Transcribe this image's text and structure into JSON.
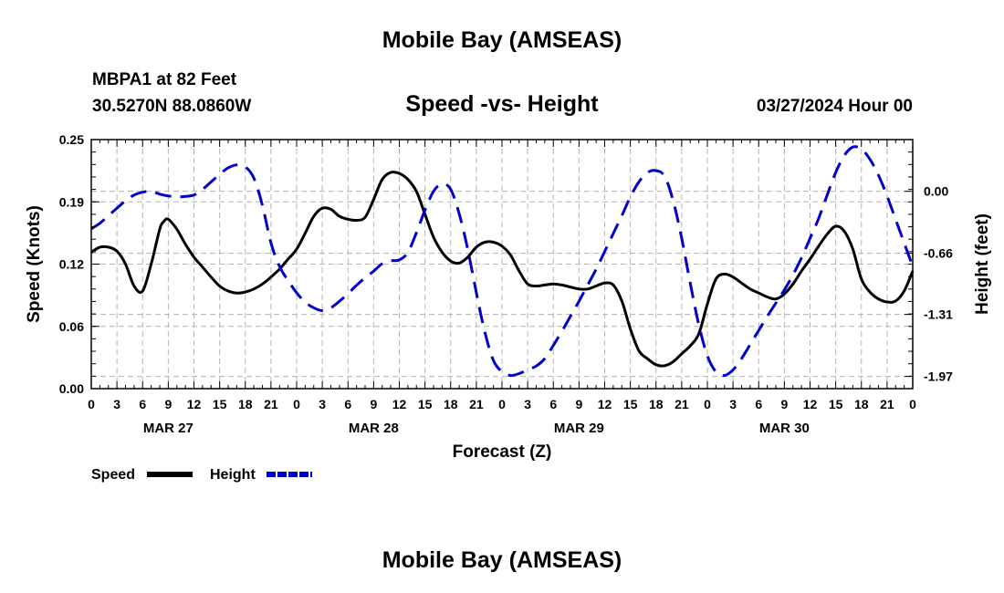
{
  "header": {
    "title": "Mobile Bay (AMSEAS)",
    "station": "MBPA1 at 82 Feet",
    "coords": "30.5270N  88.0860W",
    "chart_title": "Speed -vs- Height",
    "forecast_time": "03/27/2024 Hour 00"
  },
  "footer": {
    "title": "Mobile Bay (AMSEAS)"
  },
  "colors": {
    "speed": "#000000",
    "height": "#0000cc",
    "grid": "#b4b4b4"
  },
  "chart_data": {
    "type": "line",
    "title": "Speed -vs- Height",
    "xlabel": "Forecast (Z)",
    "ylabel_left": "Speed (Knots)",
    "ylabel_right": "Height (feet)",
    "x_unit": "hours",
    "x_range": [
      0,
      96
    ],
    "x_tick_labels": [
      "0",
      "3",
      "6",
      "9",
      "12",
      "15",
      "18",
      "21",
      "0",
      "3",
      "6",
      "9",
      "12",
      "15",
      "18",
      "21",
      "0",
      "3",
      "6",
      "9",
      "12",
      "15",
      "18",
      "21",
      "0",
      "3",
      "6",
      "9",
      "12",
      "15",
      "18",
      "21",
      "0"
    ],
    "day_labels": [
      {
        "label": "MAR 27",
        "hour": 9
      },
      {
        "label": "MAR 28",
        "hour": 33
      },
      {
        "label": "MAR 29",
        "hour": 57
      },
      {
        "label": "MAR 30",
        "hour": 81
      }
    ],
    "y_left": {
      "range": [
        0,
        0.25
      ],
      "ticks": [
        "0.00",
        "0.06",
        "0.12",
        "0.19",
        "0.25"
      ],
      "tick_values": [
        0,
        0.0625,
        0.125,
        0.1875,
        0.25
      ]
    },
    "y_right": {
      "range": [
        -2.1,
        0.55
      ],
      "ticks": [
        "-1.97",
        "-1.31",
        "-0.66",
        "0.00"
      ],
      "tick_values": [
        -1.97,
        -1.31,
        -0.66,
        0.0
      ]
    },
    "grid": true,
    "legend": {
      "placement": "bottom-left",
      "entries": [
        "Speed",
        "Height"
      ]
    },
    "series": [
      {
        "name": "Speed",
        "axis": "left",
        "style": "solid",
        "points": [
          [
            0,
            0.137
          ],
          [
            1,
            0.142
          ],
          [
            2,
            0.142
          ],
          [
            3,
            0.138
          ],
          [
            4,
            0.125
          ],
          [
            5,
            0.103
          ],
          [
            6,
            0.098
          ],
          [
            7,
            0.125
          ],
          [
            8,
            0.16
          ],
          [
            8.5,
            0.168
          ],
          [
            9,
            0.17
          ],
          [
            10,
            0.16
          ],
          [
            11,
            0.145
          ],
          [
            12,
            0.132
          ],
          [
            13,
            0.122
          ],
          [
            14,
            0.112
          ],
          [
            15,
            0.103
          ],
          [
            16,
            0.098
          ],
          [
            17,
            0.096
          ],
          [
            18,
            0.097
          ],
          [
            19,
            0.1
          ],
          [
            20,
            0.105
          ],
          [
            21,
            0.112
          ],
          [
            22,
            0.12
          ],
          [
            23,
            0.13
          ],
          [
            24,
            0.14
          ],
          [
            25,
            0.156
          ],
          [
            26,
            0.173
          ],
          [
            27,
            0.181
          ],
          [
            28,
            0.18
          ],
          [
            29,
            0.173
          ],
          [
            30,
            0.17
          ],
          [
            31,
            0.169
          ],
          [
            32,
            0.172
          ],
          [
            33,
            0.19
          ],
          [
            34,
            0.21
          ],
          [
            35,
            0.217
          ],
          [
            36,
            0.216
          ],
          [
            37,
            0.21
          ],
          [
            38,
            0.198
          ],
          [
            39,
            0.175
          ],
          [
            40,
            0.152
          ],
          [
            41,
            0.137
          ],
          [
            42,
            0.128
          ],
          [
            43,
            0.126
          ],
          [
            44,
            0.132
          ],
          [
            45,
            0.142
          ],
          [
            46,
            0.147
          ],
          [
            47,
            0.147
          ],
          [
            48,
            0.143
          ],
          [
            49,
            0.134
          ],
          [
            50,
            0.118
          ],
          [
            51,
            0.105
          ],
          [
            52,
            0.103
          ],
          [
            53,
            0.104
          ],
          [
            54,
            0.105
          ],
          [
            55,
            0.104
          ],
          [
            56,
            0.102
          ],
          [
            57,
            0.1
          ],
          [
            58,
            0.1
          ],
          [
            59,
            0.103
          ],
          [
            60,
            0.106
          ],
          [
            61,
            0.104
          ],
          [
            62,
            0.088
          ],
          [
            63,
            0.06
          ],
          [
            64,
            0.038
          ],
          [
            65,
            0.03
          ],
          [
            66,
            0.024
          ],
          [
            67,
            0.023
          ],
          [
            68,
            0.027
          ],
          [
            69,
            0.035
          ],
          [
            70,
            0.043
          ],
          [
            71,
            0.055
          ],
          [
            72,
            0.085
          ],
          [
            73,
            0.11
          ],
          [
            74,
            0.115
          ],
          [
            75,
            0.112
          ],
          [
            76,
            0.106
          ],
          [
            77,
            0.1
          ],
          [
            78,
            0.096
          ],
          [
            79,
            0.092
          ],
          [
            80,
            0.09
          ],
          [
            81,
            0.095
          ],
          [
            82,
            0.105
          ],
          [
            83,
            0.118
          ],
          [
            84,
            0.13
          ],
          [
            85,
            0.143
          ],
          [
            86,
            0.155
          ],
          [
            87,
            0.163
          ],
          [
            88,
            0.158
          ],
          [
            89,
            0.14
          ],
          [
            90,
            0.11
          ],
          [
            91,
            0.097
          ],
          [
            92,
            0.09
          ],
          [
            93,
            0.087
          ],
          [
            94,
            0.088
          ],
          [
            95,
            0.098
          ],
          [
            96,
            0.118
          ]
        ]
      },
      {
        "name": "Height",
        "axis": "right",
        "style": "dashed",
        "points": [
          [
            0,
            -0.4
          ],
          [
            1,
            -0.34
          ],
          [
            2,
            -0.26
          ],
          [
            3,
            -0.18
          ],
          [
            4,
            -0.1
          ],
          [
            5,
            -0.04
          ],
          [
            6,
            -0.01
          ],
          [
            7,
            0.0
          ],
          [
            8,
            -0.03
          ],
          [
            9,
            -0.05
          ],
          [
            10,
            -0.06
          ],
          [
            11,
            -0.055
          ],
          [
            12,
            -0.04
          ],
          [
            13,
            0.02
          ],
          [
            14,
            0.1
          ],
          [
            15,
            0.18
          ],
          [
            16,
            0.25
          ],
          [
            17,
            0.28
          ],
          [
            18,
            0.26
          ],
          [
            19,
            0.14
          ],
          [
            20,
            -0.15
          ],
          [
            21,
            -0.55
          ],
          [
            22,
            -0.8
          ],
          [
            23,
            -0.95
          ],
          [
            24,
            -1.08
          ],
          [
            25,
            -1.18
          ],
          [
            26,
            -1.24
          ],
          [
            27,
            -1.27
          ],
          [
            28,
            -1.24
          ],
          [
            29,
            -1.17
          ],
          [
            30,
            -1.09
          ],
          [
            31,
            -1.0
          ],
          [
            32,
            -0.92
          ],
          [
            33,
            -0.85
          ],
          [
            34,
            -0.77
          ],
          [
            35,
            -0.74
          ],
          [
            36,
            -0.73
          ],
          [
            37,
            -0.65
          ],
          [
            38,
            -0.44
          ],
          [
            39,
            -0.2
          ],
          [
            40,
            0.0
          ],
          [
            41,
            0.08
          ],
          [
            42,
            0.02
          ],
          [
            43,
            -0.24
          ],
          [
            44,
            -0.62
          ],
          [
            45,
            -1.08
          ],
          [
            46,
            -1.5
          ],
          [
            47,
            -1.8
          ],
          [
            48,
            -1.92
          ],
          [
            49,
            -1.96
          ],
          [
            50,
            -1.94
          ],
          [
            51,
            -1.9
          ],
          [
            52,
            -1.86
          ],
          [
            53,
            -1.78
          ],
          [
            54,
            -1.64
          ],
          [
            55,
            -1.49
          ],
          [
            56,
            -1.33
          ],
          [
            57,
            -1.17
          ],
          [
            58,
            -1.0
          ],
          [
            59,
            -0.83
          ],
          [
            60,
            -0.64
          ],
          [
            61,
            -0.45
          ],
          [
            62,
            -0.26
          ],
          [
            63,
            -0.06
          ],
          [
            64,
            0.1
          ],
          [
            65,
            0.2
          ],
          [
            66,
            0.22
          ],
          [
            67,
            0.16
          ],
          [
            68,
            -0.1
          ],
          [
            69,
            -0.5
          ],
          [
            70,
            -0.98
          ],
          [
            71,
            -1.42
          ],
          [
            72,
            -1.75
          ],
          [
            73,
            -1.92
          ],
          [
            74,
            -1.96
          ],
          [
            75,
            -1.9
          ],
          [
            76,
            -1.78
          ],
          [
            77,
            -1.63
          ],
          [
            78,
            -1.48
          ],
          [
            79,
            -1.33
          ],
          [
            80,
            -1.19
          ],
          [
            81,
            -1.05
          ],
          [
            82,
            -0.89
          ],
          [
            83,
            -0.71
          ],
          [
            84,
            -0.5
          ],
          [
            85,
            -0.29
          ],
          [
            86,
            -0.04
          ],
          [
            87,
            0.2
          ],
          [
            88,
            0.38
          ],
          [
            89,
            0.47
          ],
          [
            90,
            0.45
          ],
          [
            91,
            0.34
          ],
          [
            92,
            0.17
          ],
          [
            93,
            -0.05
          ],
          [
            94,
            -0.3
          ],
          [
            95,
            -0.55
          ],
          [
            96,
            -0.8
          ]
        ]
      }
    ]
  }
}
